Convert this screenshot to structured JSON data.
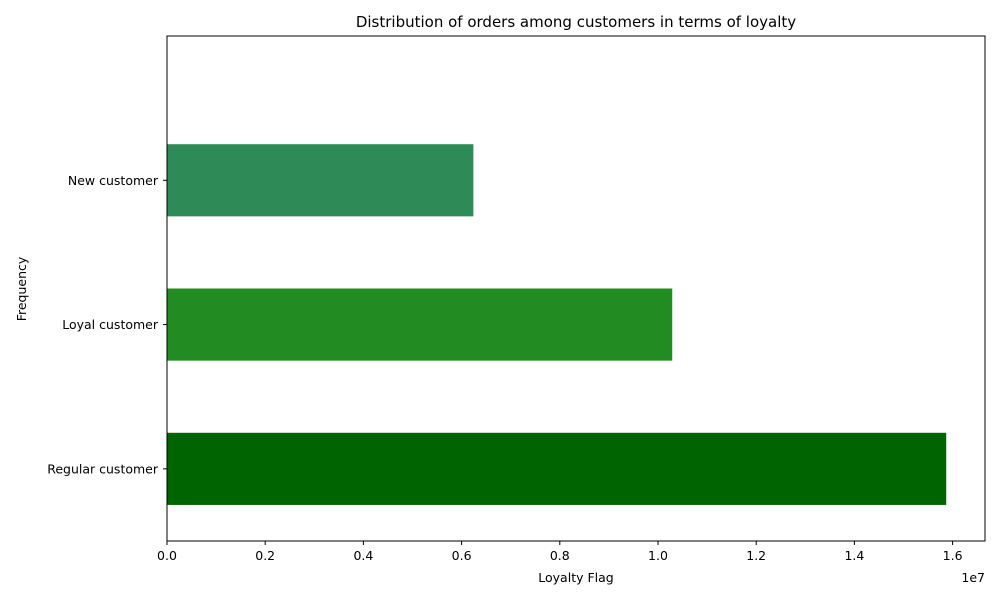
{
  "chart_data": {
    "type": "bar",
    "orientation": "horizontal",
    "title": "Distribution of orders among customers in terms of loyalty",
    "xlabel": "Loyalty Flag",
    "ylabel": "Frequency",
    "x_offset_label": "1e7",
    "categories": [
      "Regular customer",
      "Loyal customer",
      "New customer"
    ],
    "values": [
      15870000,
      10290000,
      6240000
    ],
    "bar_colors": [
      "#006400",
      "#228B22",
      "#2E8B57"
    ],
    "xlim": [
      0,
      16660000
    ],
    "xticks": [
      0,
      2000000,
      4000000,
      6000000,
      8000000,
      10000000,
      12000000,
      14000000,
      16000000
    ],
    "xtick_labels": [
      "0.0",
      "0.2",
      "0.4",
      "0.6",
      "0.8",
      "1.0",
      "1.2",
      "1.4",
      "1.6"
    ],
    "grid": false,
    "legend": "none"
  }
}
